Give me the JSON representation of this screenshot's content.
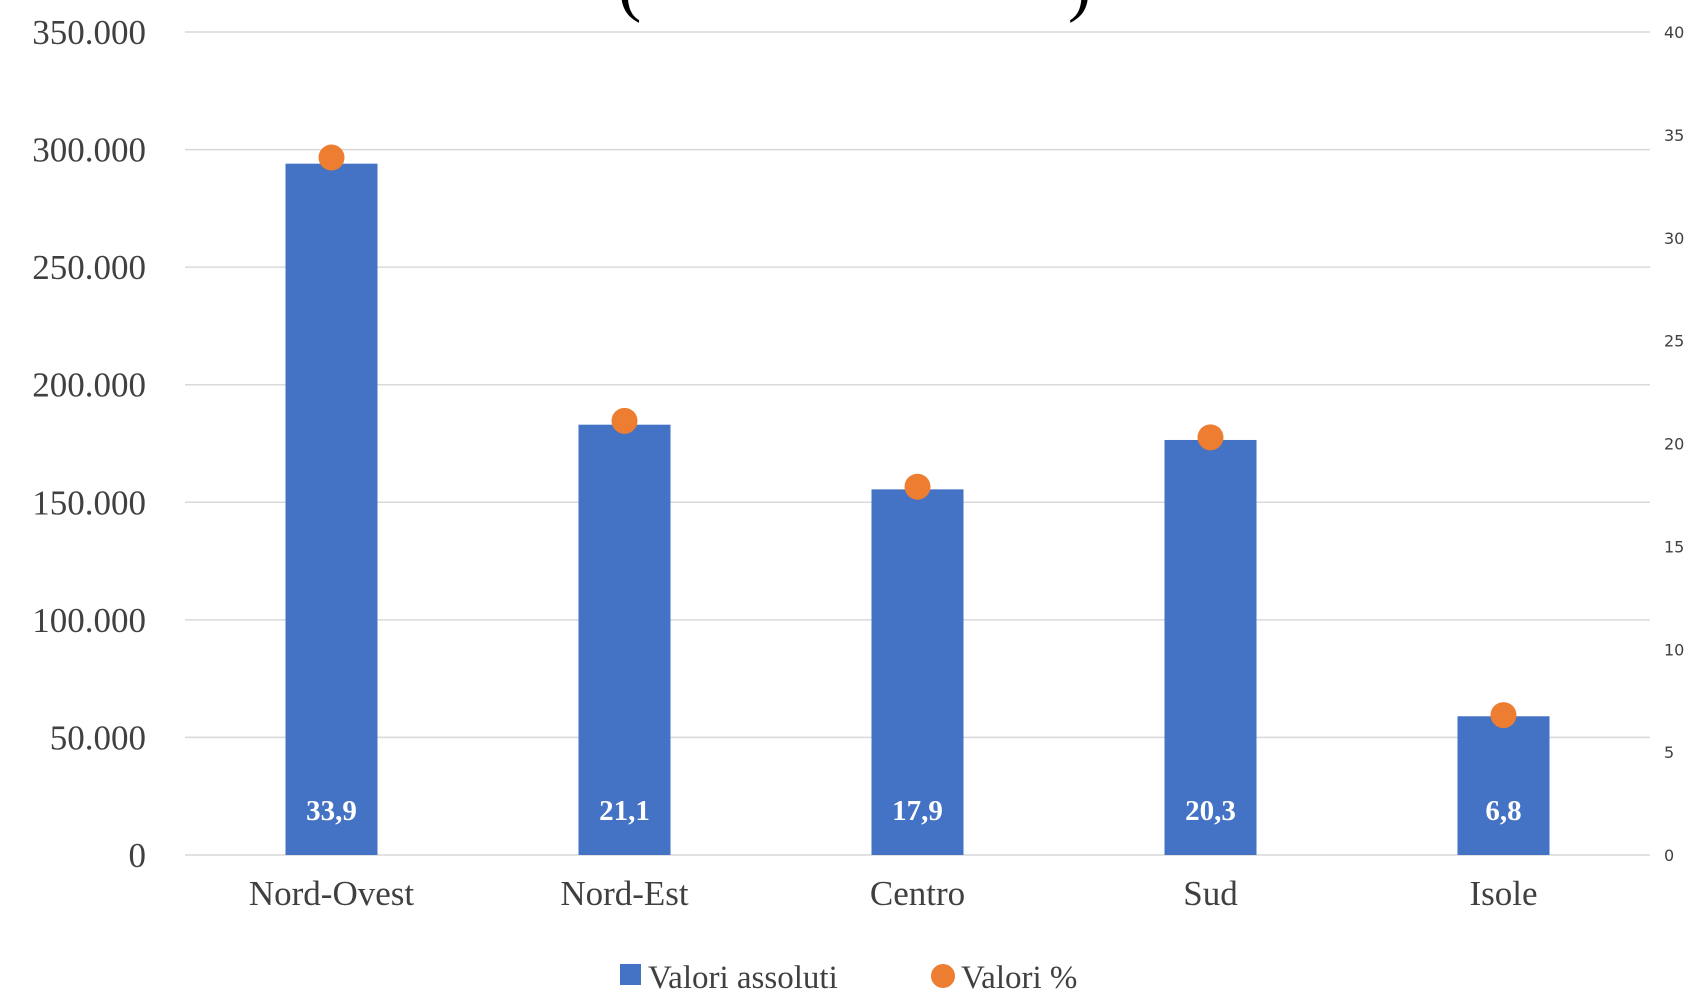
{
  "chart_data": {
    "type": "bar",
    "title": "( )",
    "categories": [
      "Nord-Ovest",
      "Nord-Est",
      "Centro",
      "Sud",
      "Isole"
    ],
    "series": [
      {
        "name": "Valori assoluti",
        "type": "bar",
        "axis": "left",
        "color": "#4472C4",
        "values": [
          294000,
          183000,
          155500,
          176500,
          59000
        ]
      },
      {
        "name": "Valori %",
        "type": "scatter",
        "axis": "right",
        "color": "#ED7D31",
        "values": [
          33.9,
          21.1,
          17.9,
          20.3,
          6.8
        ]
      }
    ],
    "bar_labels": [
      "33,9",
      "21,1",
      "17,9",
      "20,3",
      "6,8"
    ],
    "y_left": {
      "min": 0,
      "max": 350000,
      "ticks": [
        0,
        50000,
        100000,
        150000,
        200000,
        250000,
        300000,
        350000
      ],
      "tick_labels": [
        "0",
        "50.000",
        "100.000",
        "150.000",
        "200.000",
        "250.000",
        "300.000",
        "350.000"
      ]
    },
    "y_right": {
      "min": 0,
      "max": 40,
      "ticks": [
        0,
        5,
        10,
        15,
        20,
        25,
        30,
        35,
        40
      ],
      "tick_labels": [
        "0",
        "5",
        "10",
        "15",
        "20",
        "25",
        "30",
        "35",
        "40"
      ]
    },
    "grid": true,
    "legend": {
      "position": "bottom",
      "entries": [
        "Valori assoluti",
        "Valori %"
      ]
    }
  }
}
